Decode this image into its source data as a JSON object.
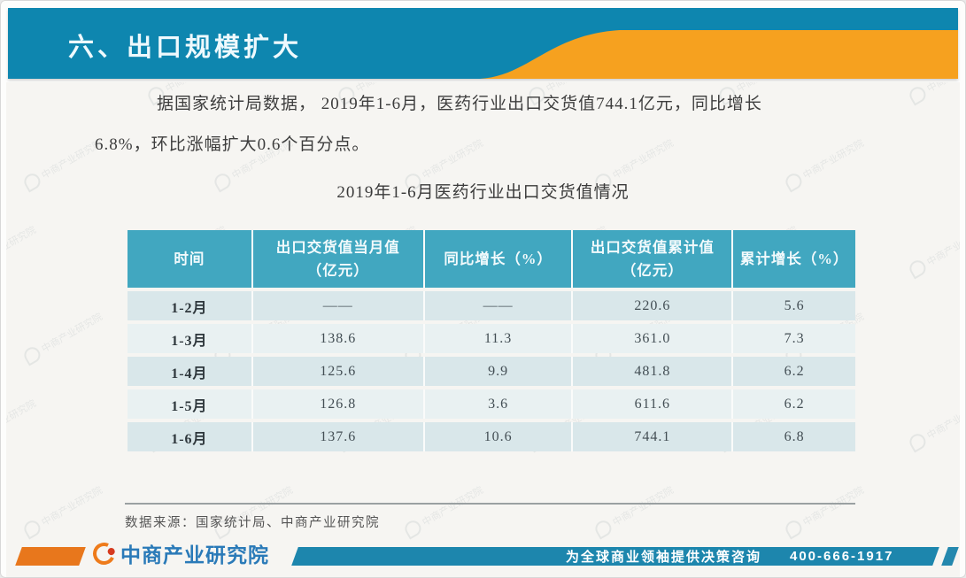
{
  "header": {
    "title": "六、出口规模扩大"
  },
  "intro": {
    "lines": [
      "据国家统计局数据， 2019年1-6月，医药行业出口交货值744.1亿元，同比增长",
      "6.8%，环比涨幅扩大0.6个百分点。"
    ]
  },
  "table": {
    "title": "2019年1-6月医药行业出口交货值情况",
    "columns": [
      "时间",
      "出口交货值当月值\n（亿元）",
      "同比增长（%）",
      "出口交货值累计值\n（亿元）",
      "累计增长（%）"
    ],
    "rows": [
      [
        "1-2月",
        "——",
        "——",
        "220.6",
        "5.6"
      ],
      [
        "1-3月",
        "138.6",
        "11.3",
        "361.0",
        "7.3"
      ],
      [
        "1-4月",
        "125.6",
        "9.9",
        "481.8",
        "6.2"
      ],
      [
        "1-5月",
        "126.8",
        "3.6",
        "611.6",
        "6.2"
      ],
      [
        "1-6月",
        "137.6",
        "10.6",
        "744.1",
        "6.8"
      ]
    ]
  },
  "source_note": "数据来源：国家统计局、中商产业研究院",
  "footer": {
    "logo_text": "中商产业研究院",
    "tagline": "为全球商业领袖提供决策咨询",
    "phone": "400-666-1917"
  },
  "watermark_text": "中商产业研究院",
  "colors": {
    "banner_blue": "#0e86af",
    "accent_orange": "#f6a11f",
    "table_header_teal": "#41a7c0",
    "row_dark": "#d9e7ea",
    "row_light": "#e9f1f2",
    "footer_blue": "#1d86ad",
    "footer_orange": "#e8771c",
    "logo_blue": "#2a7ab8"
  }
}
